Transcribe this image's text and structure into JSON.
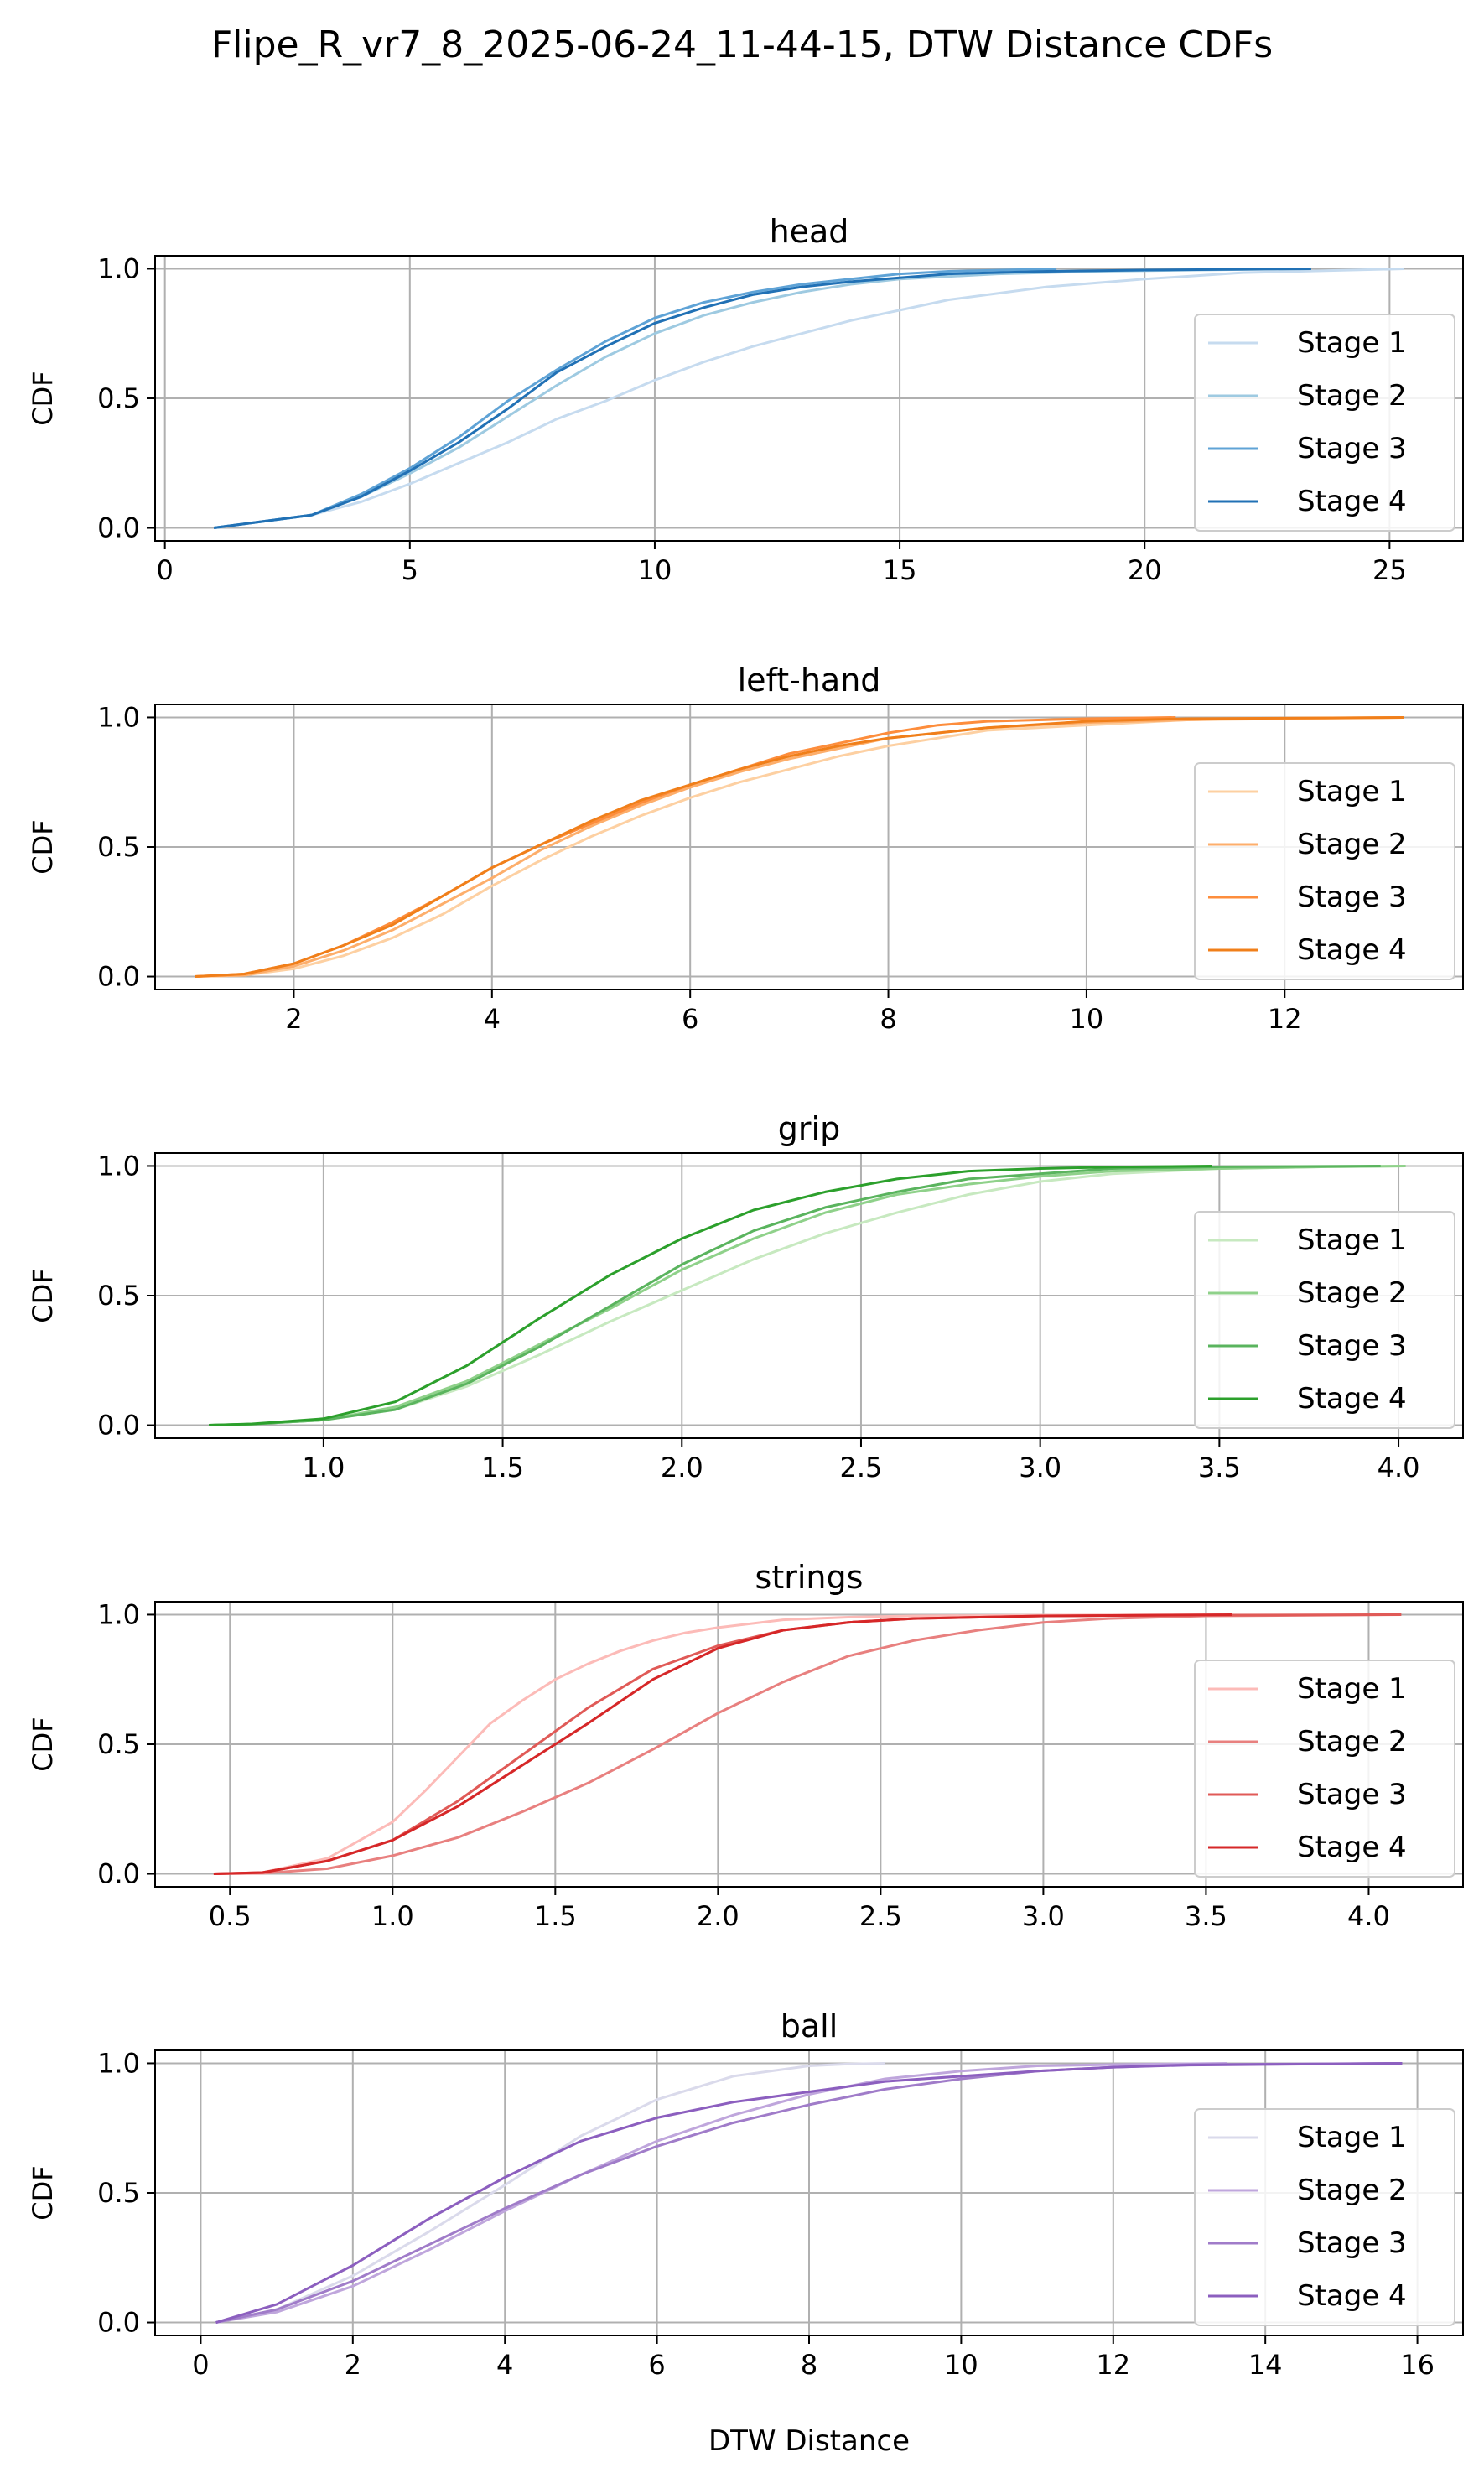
{
  "figure": {
    "title": "Flipe_R_vr7_8_2025-06-24_11-44-15, DTW Distance CDFs",
    "xlabel": "DTW Distance"
  },
  "chart_data": [
    {
      "type": "line",
      "title": "head",
      "ylabel": "CDF",
      "xlabel": "",
      "xlim": [
        -0.2,
        26.5
      ],
      "ylim": [
        -0.05,
        1.05
      ],
      "xticks": [
        0,
        5,
        10,
        15,
        20,
        25
      ],
      "xtick_labels": [
        "0",
        "5",
        "10",
        "15",
        "20",
        "25"
      ],
      "yticks": [
        0.0,
        0.5,
        1.0
      ],
      "ytick_labels": [
        "0.0",
        "0.5",
        "1.0"
      ],
      "grid": true,
      "legend": "center-right",
      "colors": [
        "#c6dbef",
        "#9ecae1",
        "#5fa3d6",
        "#2171b5"
      ],
      "series": [
        {
          "name": "Stage 1",
          "x": [
            1,
            3,
            4,
            5,
            6,
            7,
            8,
            9,
            10,
            11,
            12,
            13,
            14,
            15,
            16,
            18,
            20,
            22,
            25.3
          ],
          "y": [
            0,
            0.05,
            0.1,
            0.17,
            0.25,
            0.33,
            0.42,
            0.49,
            0.57,
            0.64,
            0.7,
            0.75,
            0.8,
            0.84,
            0.88,
            0.93,
            0.96,
            0.985,
            1
          ]
        },
        {
          "name": "Stage 2",
          "x": [
            1,
            3,
            4,
            5,
            6,
            7,
            8,
            9,
            10,
            11,
            12,
            13,
            14,
            15,
            17,
            19,
            21,
            23.4
          ],
          "y": [
            0,
            0.05,
            0.12,
            0.21,
            0.31,
            0.43,
            0.55,
            0.66,
            0.75,
            0.82,
            0.87,
            0.91,
            0.94,
            0.96,
            0.98,
            0.99,
            0.995,
            1
          ]
        },
        {
          "name": "Stage 3",
          "x": [
            1,
            3,
            4,
            5,
            6,
            7,
            8,
            9,
            10,
            11,
            12,
            13,
            14,
            15,
            16,
            18.2
          ],
          "y": [
            0,
            0.05,
            0.13,
            0.23,
            0.35,
            0.49,
            0.61,
            0.72,
            0.81,
            0.87,
            0.91,
            0.94,
            0.96,
            0.98,
            0.99,
            1
          ]
        },
        {
          "name": "Stage 4",
          "x": [
            1,
            3,
            4,
            5,
            6,
            7,
            8,
            9,
            10,
            11,
            12,
            13,
            14,
            16,
            18,
            20,
            23.4
          ],
          "y": [
            0,
            0.05,
            0.12,
            0.22,
            0.33,
            0.46,
            0.6,
            0.7,
            0.79,
            0.85,
            0.9,
            0.93,
            0.95,
            0.98,
            0.99,
            0.995,
            1
          ]
        }
      ]
    },
    {
      "type": "line",
      "title": "left-hand",
      "ylabel": "CDF",
      "xlabel": "",
      "xlim": [
        0.6,
        13.8
      ],
      "ylim": [
        -0.05,
        1.05
      ],
      "xticks": [
        2,
        4,
        6,
        8,
        10,
        12
      ],
      "xtick_labels": [
        "2",
        "4",
        "6",
        "8",
        "10",
        "12"
      ],
      "yticks": [
        0.0,
        0.5,
        1.0
      ],
      "ytick_labels": [
        "0.0",
        "0.5",
        "1.0"
      ],
      "grid": true,
      "legend": "center-right",
      "colors": [
        "#fdd0a2",
        "#fdae6b",
        "#fd8d3c",
        "#f07f1a"
      ],
      "series": [
        {
          "name": "Stage 1",
          "x": [
            1,
            1.5,
            2,
            2.5,
            3,
            3.5,
            4,
            4.5,
            5,
            5.5,
            6,
            6.5,
            7,
            7.5,
            8,
            8.5,
            9,
            10,
            11,
            12,
            13.2
          ],
          "y": [
            0,
            0.005,
            0.03,
            0.08,
            0.15,
            0.24,
            0.35,
            0.45,
            0.54,
            0.62,
            0.69,
            0.75,
            0.8,
            0.85,
            0.89,
            0.92,
            0.95,
            0.97,
            0.99,
            0.995,
            1
          ]
        },
        {
          "name": "Stage 2",
          "x": [
            1,
            1.5,
            2,
            2.5,
            3,
            3.5,
            4,
            4.5,
            5,
            5.5,
            6,
            6.5,
            7,
            7.5,
            8,
            9,
            10,
            11.5,
            13.2
          ],
          "y": [
            0,
            0.005,
            0.04,
            0.1,
            0.18,
            0.28,
            0.38,
            0.49,
            0.58,
            0.66,
            0.73,
            0.79,
            0.84,
            0.88,
            0.92,
            0.96,
            0.98,
            0.995,
            1
          ]
        },
        {
          "name": "Stage 3",
          "x": [
            1,
            1.5,
            2,
            2.5,
            3,
            3.5,
            4,
            4.5,
            5,
            5.5,
            6,
            6.5,
            7,
            7.5,
            8,
            8.5,
            9,
            10,
            10.9
          ],
          "y": [
            0,
            0.01,
            0.05,
            0.12,
            0.21,
            0.31,
            0.42,
            0.51,
            0.59,
            0.67,
            0.74,
            0.8,
            0.86,
            0.9,
            0.94,
            0.97,
            0.985,
            0.995,
            1
          ]
        },
        {
          "name": "Stage 4",
          "x": [
            1,
            1.5,
            2,
            2.5,
            3,
            3.5,
            4,
            4.5,
            5,
            5.5,
            6,
            6.5,
            7,
            7.5,
            8,
            9,
            10,
            11,
            13.2
          ],
          "y": [
            0,
            0.01,
            0.05,
            0.12,
            0.2,
            0.31,
            0.42,
            0.51,
            0.6,
            0.68,
            0.74,
            0.8,
            0.85,
            0.89,
            0.92,
            0.96,
            0.985,
            0.995,
            1
          ]
        }
      ]
    },
    {
      "type": "line",
      "title": "grip",
      "ylabel": "CDF",
      "xlabel": "",
      "xlim": [
        0.53,
        4.18
      ],
      "ylim": [
        -0.05,
        1.05
      ],
      "xticks": [
        1.0,
        1.5,
        2.0,
        2.5,
        3.0,
        3.5,
        4.0
      ],
      "xtick_labels": [
        "1.0",
        "1.5",
        "2.0",
        "2.5",
        "3.0",
        "3.5",
        "4.0"
      ],
      "yticks": [
        0.0,
        0.5,
        1.0
      ],
      "ytick_labels": [
        "0.0",
        "0.5",
        "1.0"
      ],
      "grid": true,
      "legend": "center-right",
      "colors": [
        "#c7e9c0",
        "#8fd18a",
        "#5ab45e",
        "#2ca02c"
      ],
      "series": [
        {
          "name": "Stage 1",
          "x": [
            0.68,
            0.8,
            1.0,
            1.2,
            1.4,
            1.6,
            1.8,
            2.0,
            2.2,
            2.4,
            2.6,
            2.8,
            3.0,
            3.2,
            3.5,
            3.8,
            4.02
          ],
          "y": [
            0,
            0.004,
            0.02,
            0.06,
            0.15,
            0.27,
            0.4,
            0.52,
            0.64,
            0.74,
            0.82,
            0.89,
            0.94,
            0.97,
            0.99,
            0.997,
            1
          ]
        },
        {
          "name": "Stage 2",
          "x": [
            0.68,
            0.8,
            1.0,
            1.2,
            1.4,
            1.6,
            1.8,
            2.0,
            2.2,
            2.4,
            2.6,
            2.8,
            3.0,
            3.2,
            3.5,
            3.8,
            4.02
          ],
          "y": [
            0,
            0.004,
            0.02,
            0.07,
            0.17,
            0.31,
            0.45,
            0.6,
            0.72,
            0.82,
            0.89,
            0.93,
            0.96,
            0.98,
            0.99,
            0.997,
            1
          ]
        },
        {
          "name": "Stage 3",
          "x": [
            0.68,
            0.8,
            1.0,
            1.2,
            1.4,
            1.6,
            1.8,
            2.0,
            2.2,
            2.4,
            2.6,
            2.8,
            3.0,
            3.2,
            3.5,
            3.95
          ],
          "y": [
            0,
            0.004,
            0.02,
            0.06,
            0.16,
            0.3,
            0.46,
            0.62,
            0.75,
            0.84,
            0.9,
            0.95,
            0.97,
            0.99,
            0.997,
            1
          ]
        },
        {
          "name": "Stage 4",
          "x": [
            0.68,
            0.8,
            1.0,
            1.2,
            1.4,
            1.6,
            1.8,
            2.0,
            2.2,
            2.4,
            2.6,
            2.8,
            3.0,
            3.2,
            3.48
          ],
          "y": [
            0,
            0.005,
            0.025,
            0.09,
            0.23,
            0.41,
            0.58,
            0.72,
            0.83,
            0.9,
            0.95,
            0.98,
            0.99,
            0.996,
            1
          ]
        }
      ]
    },
    {
      "type": "line",
      "title": "strings",
      "ylabel": "CDF",
      "xlabel": "",
      "xlim": [
        0.27,
        4.29
      ],
      "ylim": [
        -0.05,
        1.05
      ],
      "xticks": [
        0.5,
        1.0,
        1.5,
        2.0,
        2.5,
        3.0,
        3.5,
        4.0
      ],
      "xtick_labels": [
        "0.5",
        "1.0",
        "1.5",
        "2.0",
        "2.5",
        "3.0",
        "3.5",
        "4.0"
      ],
      "yticks": [
        0.0,
        0.5,
        1.0
      ],
      "ytick_labels": [
        "0.0",
        "0.5",
        "1.0"
      ],
      "grid": true,
      "legend": "center-right",
      "colors": [
        "#fcbbb8",
        "#e8807f",
        "#e05a57",
        "#d62728"
      ],
      "series": [
        {
          "name": "Stage 1",
          "x": [
            0.45,
            0.6,
            0.8,
            1.0,
            1.1,
            1.2,
            1.3,
            1.4,
            1.5,
            1.6,
            1.7,
            1.8,
            1.9,
            2.0,
            2.2,
            2.4,
            2.6,
            3.0,
            3.55
          ],
          "y": [
            0,
            0.005,
            0.06,
            0.2,
            0.32,
            0.45,
            0.58,
            0.67,
            0.75,
            0.81,
            0.86,
            0.9,
            0.93,
            0.95,
            0.98,
            0.99,
            0.995,
            0.998,
            1
          ]
        },
        {
          "name": "Stage 2",
          "x": [
            0.45,
            0.6,
            0.8,
            1.0,
            1.2,
            1.4,
            1.6,
            1.8,
            2.0,
            2.2,
            2.4,
            2.6,
            2.8,
            3.0,
            3.2,
            3.5,
            4.1
          ],
          "y": [
            0,
            0.002,
            0.02,
            0.07,
            0.14,
            0.24,
            0.35,
            0.48,
            0.62,
            0.74,
            0.84,
            0.9,
            0.94,
            0.97,
            0.985,
            0.995,
            1
          ]
        },
        {
          "name": "Stage 3",
          "x": [
            0.45,
            0.6,
            0.8,
            1.0,
            1.2,
            1.4,
            1.6,
            1.8,
            2.0,
            2.2,
            2.4,
            2.6,
            3.0,
            3.4,
            4.1
          ],
          "y": [
            0,
            0.005,
            0.05,
            0.13,
            0.28,
            0.46,
            0.64,
            0.79,
            0.88,
            0.94,
            0.97,
            0.985,
            0.995,
            0.998,
            1
          ]
        },
        {
          "name": "Stage 4",
          "x": [
            0.45,
            0.6,
            0.8,
            1.0,
            1.2,
            1.4,
            1.6,
            1.8,
            2.0,
            2.2,
            2.4,
            2.6,
            3.0,
            3.58
          ],
          "y": [
            0,
            0.005,
            0.05,
            0.13,
            0.26,
            0.42,
            0.58,
            0.75,
            0.87,
            0.94,
            0.97,
            0.985,
            0.995,
            1
          ]
        }
      ]
    },
    {
      "type": "line",
      "title": "ball",
      "ylabel": "CDF",
      "xlabel": "DTW Distance",
      "xlim": [
        -0.6,
        16.6
      ],
      "ylim": [
        -0.05,
        1.05
      ],
      "xticks": [
        0,
        2,
        4,
        6,
        8,
        10,
        12,
        14,
        16
      ],
      "xtick_labels": [
        "0",
        "2",
        "4",
        "6",
        "8",
        "10",
        "12",
        "14",
        "16"
      ],
      "yticks": [
        0.0,
        0.5,
        1.0
      ],
      "ytick_labels": [
        "0.0",
        "0.5",
        "1.0"
      ],
      "grid": true,
      "legend": "center-right",
      "colors": [
        "#dadaeb",
        "#bfa6dc",
        "#a07cc9",
        "#8c5fbf"
      ],
      "series": [
        {
          "name": "Stage 1",
          "x": [
            0.2,
            1,
            2,
            3,
            4,
            5,
            6,
            7,
            8,
            8.5,
            9
          ],
          "y": [
            0,
            0.05,
            0.18,
            0.35,
            0.53,
            0.72,
            0.86,
            0.95,
            0.99,
            0.997,
            1
          ]
        },
        {
          "name": "Stage 2",
          "x": [
            0.2,
            1,
            2,
            3,
            4,
            5,
            6,
            7,
            8,
            9,
            10,
            11,
            12,
            13.5
          ],
          "y": [
            0,
            0.04,
            0.14,
            0.28,
            0.43,
            0.57,
            0.7,
            0.8,
            0.88,
            0.94,
            0.97,
            0.99,
            0.995,
            1
          ]
        },
        {
          "name": "Stage 3",
          "x": [
            0.2,
            1,
            2,
            3,
            4,
            5,
            6,
            7,
            8,
            9,
            10,
            11,
            12,
            13,
            15.8
          ],
          "y": [
            0,
            0.05,
            0.16,
            0.3,
            0.44,
            0.57,
            0.68,
            0.77,
            0.84,
            0.9,
            0.94,
            0.97,
            0.985,
            0.995,
            1
          ]
        },
        {
          "name": "Stage 4",
          "x": [
            0.2,
            1,
            2,
            3,
            4,
            5,
            6,
            7,
            8,
            9,
            10,
            11,
            12,
            13,
            15.8
          ],
          "y": [
            0,
            0.07,
            0.22,
            0.4,
            0.56,
            0.7,
            0.79,
            0.85,
            0.89,
            0.93,
            0.95,
            0.97,
            0.985,
            0.993,
            1
          ]
        }
      ]
    }
  ]
}
